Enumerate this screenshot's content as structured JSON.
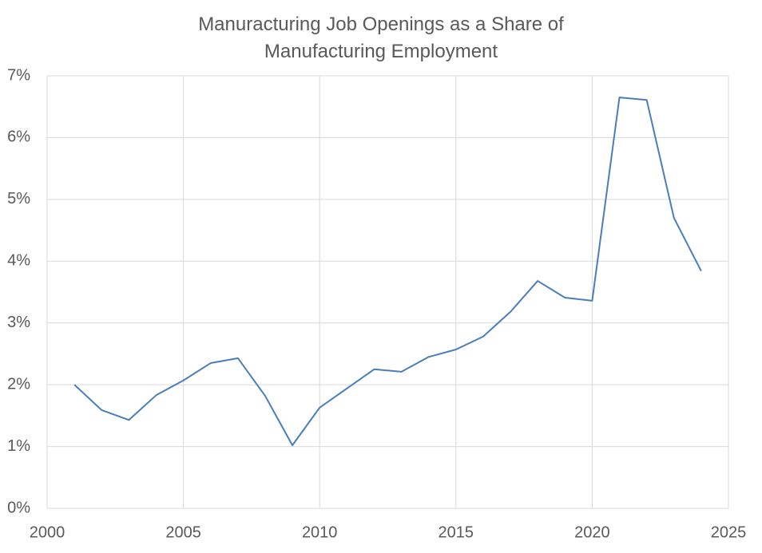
{
  "chart_data": {
    "type": "line",
    "title": "Manuracturing Job Openings as a Share of Manufacturing Employment",
    "x": [
      2001,
      2002,
      2003,
      2004,
      2005,
      2006,
      2007,
      2008,
      2009,
      2010,
      2011,
      2012,
      2013,
      2014,
      2015,
      2016,
      2017,
      2018,
      2019,
      2020,
      2021,
      2022,
      2023,
      2024
    ],
    "values": [
      2.0,
      1.59,
      1.43,
      1.83,
      2.07,
      2.35,
      2.43,
      1.82,
      1.02,
      1.63,
      1.94,
      2.25,
      2.21,
      2.45,
      2.57,
      2.78,
      3.18,
      3.68,
      3.41,
      3.36,
      6.65,
      6.61,
      4.7,
      3.84
    ],
    "color": "#4a7ebb",
    "xlim": [
      2000,
      2025
    ],
    "xticks": [
      2000,
      2005,
      2010,
      2015,
      2020,
      2025
    ],
    "ylim": [
      0,
      7
    ],
    "yticks": [
      {
        "value": 0,
        "label": "0%"
      },
      {
        "value": 1,
        "label": "1%"
      },
      {
        "value": 2,
        "label": "2%"
      },
      {
        "value": 3,
        "label": "3%"
      },
      {
        "value": 4,
        "label": "4%"
      },
      {
        "value": 5,
        "label": "5%"
      },
      {
        "value": 6,
        "label": "6%"
      },
      {
        "value": 7,
        "label": "7%"
      }
    ],
    "grid": true
  }
}
